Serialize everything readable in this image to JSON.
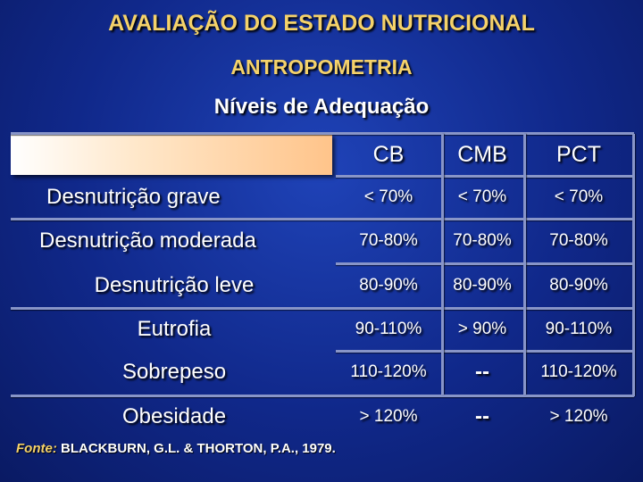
{
  "titles": {
    "main": "AVALIAÇÃO DO ESTADO NUTRICIONAL",
    "sub": "ANTROPOMETRIA",
    "section": "Níveis de Adequação"
  },
  "table": {
    "columns": [
      "CB",
      "CMB",
      "PCT"
    ],
    "rows": [
      {
        "label": "Desnutrição grave",
        "cb": "< 70%",
        "cmb": "< 70%",
        "pct": "< 70%"
      },
      {
        "label": "Desnutrição moderada",
        "cb": "70-80%",
        "cmb": "70-80%",
        "pct": "70-80%"
      },
      {
        "label": "Desnutrição leve",
        "cb": "80-90%",
        "cmb": "80-90%",
        "pct": "80-90%"
      },
      {
        "label": "Eutrofia",
        "cb": "90-110%",
        "cmb": "> 90%",
        "pct": "90-110%"
      },
      {
        "label": "Sobrepeso",
        "cb": "110-120%",
        "cmb": "--",
        "pct": "110-120%"
      },
      {
        "label": "Obesidade",
        "cb": "> 120%",
        "cmb": "--",
        "pct": "> 120%"
      }
    ]
  },
  "source": {
    "prefix": "Fonte:",
    "text": " BLACKBURN, G.L. & THORTON, P.A., 1979."
  }
}
